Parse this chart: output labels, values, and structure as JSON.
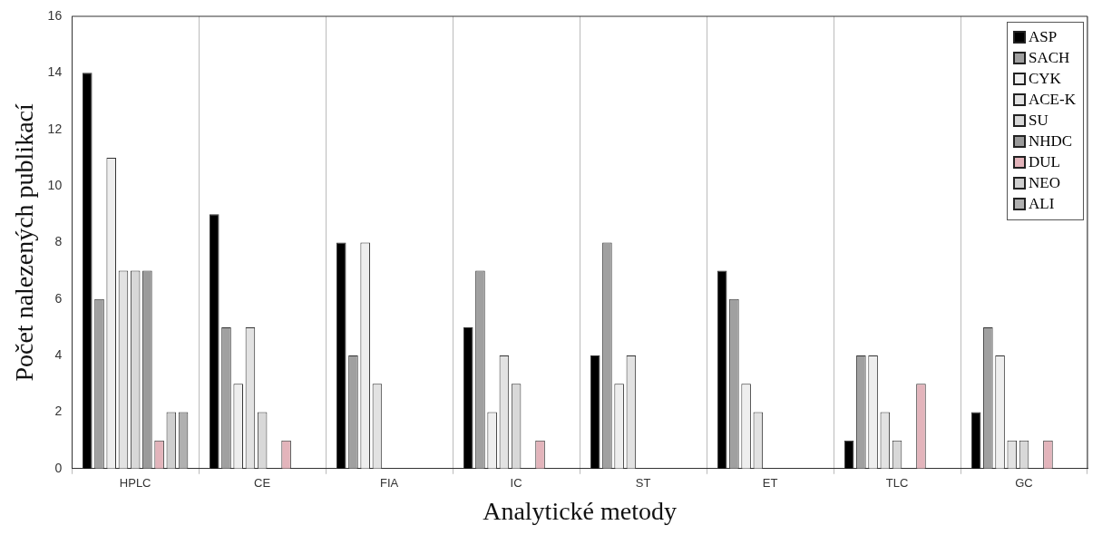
{
  "chart_data": {
    "type": "bar",
    "xlabel": "Analytické metody",
    "ylabel": "Počet nalezených publikací",
    "categories": [
      "HPLC",
      "CE",
      "FIA",
      "IC",
      "ST",
      "ET",
      "TLC",
      "GC"
    ],
    "series": [
      {
        "name": "ASP",
        "color": "#000000",
        "values": [
          14,
          9,
          8,
          5,
          4,
          7,
          1,
          2
        ]
      },
      {
        "name": "SACH",
        "color": "#a0a0a0",
        "values": [
          6,
          5,
          4,
          7,
          8,
          6,
          4,
          5
        ]
      },
      {
        "name": "CYK",
        "color": "#eeeeee",
        "values": [
          11,
          3,
          8,
          2,
          3,
          3,
          4,
          4
        ]
      },
      {
        "name": "ACE-K",
        "color": "#e2e2e2",
        "values": [
          7,
          5,
          3,
          4,
          4,
          2,
          2,
          1
        ]
      },
      {
        "name": "SU",
        "color": "#d8d8d8",
        "values": [
          7,
          2,
          0,
          3,
          0,
          0,
          1,
          1
        ]
      },
      {
        "name": "NHDC",
        "color": "#9a9a9a",
        "values": [
          7,
          0,
          0,
          0,
          0,
          0,
          0,
          0
        ]
      },
      {
        "name": "DUL",
        "color": "#e3b4bb",
        "values": [
          1,
          1,
          0,
          1,
          0,
          0,
          3,
          1
        ]
      },
      {
        "name": "NEO",
        "color": "#cfcfcf",
        "values": [
          2,
          0,
          0,
          0,
          0,
          0,
          0,
          0
        ]
      },
      {
        "name": "ALI",
        "color": "#b0b0b0",
        "values": [
          2,
          0,
          0,
          0,
          0,
          0,
          0,
          0
        ]
      }
    ],
    "ylim": [
      0,
      16
    ],
    "yticks": [
      0,
      2,
      4,
      6,
      8,
      10,
      12,
      14,
      16
    ],
    "grid": "x",
    "legend": "top right"
  }
}
